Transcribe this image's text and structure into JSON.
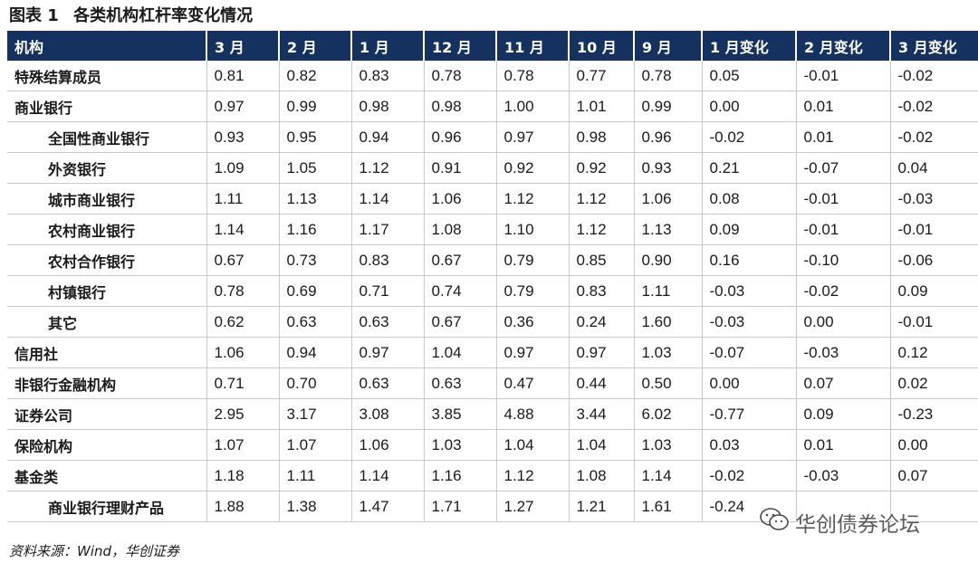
{
  "title": {
    "label": "图表",
    "number": "1",
    "text": "各类机构杠杆率变化情况"
  },
  "table": {
    "headers": [
      "机构",
      "3 月",
      "2 月",
      "1 月",
      "12 月",
      "11 月",
      "10 月",
      "9 月",
      "1 月变化",
      "2 月变化",
      "3 月变化"
    ],
    "rows": [
      {
        "name": "特殊结算成员",
        "indent": false,
        "values": [
          "0.81",
          "0.82",
          "0.83",
          "0.78",
          "0.78",
          "0.77",
          "0.78",
          "0.05",
          "-0.01",
          "-0.02"
        ]
      },
      {
        "name": "商业银行",
        "indent": false,
        "values": [
          "0.97",
          "0.99",
          "0.98",
          "0.98",
          "1.00",
          "1.01",
          "0.99",
          "0.00",
          "0.01",
          "-0.02"
        ]
      },
      {
        "name": "全国性商业银行",
        "indent": true,
        "values": [
          "0.93",
          "0.95",
          "0.94",
          "0.96",
          "0.97",
          "0.98",
          "0.96",
          "-0.02",
          "0.01",
          "-0.02"
        ]
      },
      {
        "name": "外资银行",
        "indent": true,
        "values": [
          "1.09",
          "1.05",
          "1.12",
          "0.91",
          "0.92",
          "0.92",
          "0.93",
          "0.21",
          "-0.07",
          "0.04"
        ]
      },
      {
        "name": "城市商业银行",
        "indent": true,
        "values": [
          "1.11",
          "1.13",
          "1.14",
          "1.06",
          "1.12",
          "1.12",
          "1.06",
          "0.08",
          "-0.01",
          "-0.03"
        ]
      },
      {
        "name": "农村商业银行",
        "indent": true,
        "values": [
          "1.14",
          "1.16",
          "1.17",
          "1.08",
          "1.10",
          "1.12",
          "1.13",
          "0.09",
          "-0.01",
          "-0.01"
        ]
      },
      {
        "name": "农村合作银行",
        "indent": true,
        "values": [
          "0.67",
          "0.73",
          "0.83",
          "0.67",
          "0.79",
          "0.85",
          "0.90",
          "0.16",
          "-0.10",
          "-0.06"
        ]
      },
      {
        "name": "村镇银行",
        "indent": true,
        "values": [
          "0.78",
          "0.69",
          "0.71",
          "0.74",
          "0.79",
          "0.83",
          "1.11",
          "-0.03",
          "-0.02",
          "0.09"
        ]
      },
      {
        "name": "其它",
        "indent": true,
        "values": [
          "0.62",
          "0.63",
          "0.63",
          "0.67",
          "0.36",
          "0.24",
          "1.60",
          "-0.03",
          "0.00",
          "-0.01"
        ]
      },
      {
        "name": "信用社",
        "indent": false,
        "values": [
          "1.06",
          "0.94",
          "0.97",
          "1.04",
          "0.97",
          "0.97",
          "1.03",
          "-0.07",
          "-0.03",
          "0.12"
        ]
      },
      {
        "name": "非银行金融机构",
        "indent": false,
        "values": [
          "0.71",
          "0.70",
          "0.63",
          "0.63",
          "0.47",
          "0.44",
          "0.50",
          "0.00",
          "0.07",
          "0.02"
        ]
      },
      {
        "name": "证券公司",
        "indent": false,
        "values": [
          "2.95",
          "3.17",
          "3.08",
          "3.85",
          "4.88",
          "3.44",
          "6.02",
          "-0.77",
          "0.09",
          "-0.23"
        ]
      },
      {
        "name": "保险机构",
        "indent": false,
        "values": [
          "1.07",
          "1.07",
          "1.06",
          "1.03",
          "1.04",
          "1.04",
          "1.03",
          "0.03",
          "0.01",
          "0.00"
        ]
      },
      {
        "name": "基金类",
        "indent": false,
        "values": [
          "1.18",
          "1.11",
          "1.14",
          "1.16",
          "1.12",
          "1.08",
          "1.14",
          "-0.02",
          "-0.03",
          "0.07"
        ]
      },
      {
        "name": "商业银行理财产品",
        "indent": true,
        "values": [
          "1.88",
          "1.38",
          "1.47",
          "1.71",
          "1.27",
          "1.21",
          "1.61",
          "-0.24",
          "",
          ""
        ]
      }
    ]
  },
  "source": "资料来源：Wind，华创证券",
  "watermark": {
    "text": "华创债券论坛",
    "icon": "wechat-icon"
  }
}
